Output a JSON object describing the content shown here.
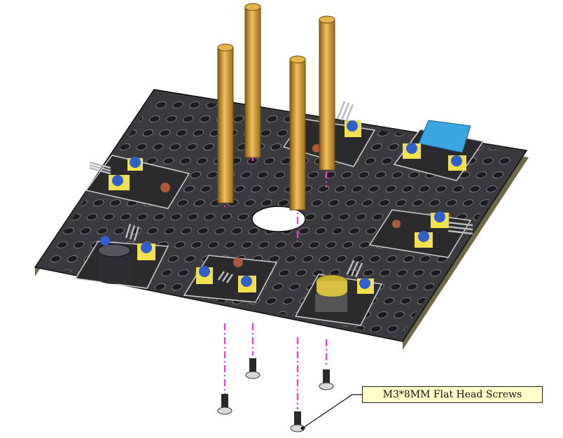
{
  "callout": {
    "label": "M3*8MM Flat Head Screws"
  },
  "colors": {
    "plate": "#3a3a3f",
    "plate_edge": "#7a7550",
    "standoff": "#d9a441",
    "guide_line": "#ff33dd",
    "module_board": "#2b2b2e",
    "module_border": "#cfcfcf",
    "connector": "#f2e14a",
    "knob": "#2f5fd0",
    "sensor_blue": "#3aa7e0",
    "screw": "#2a2a2a"
  },
  "icons": [
    "standoff-icon",
    "screw-icon",
    "buzzer-icon",
    "button-icon",
    "humidity-sensor-icon",
    "photoresistor-icon"
  ]
}
